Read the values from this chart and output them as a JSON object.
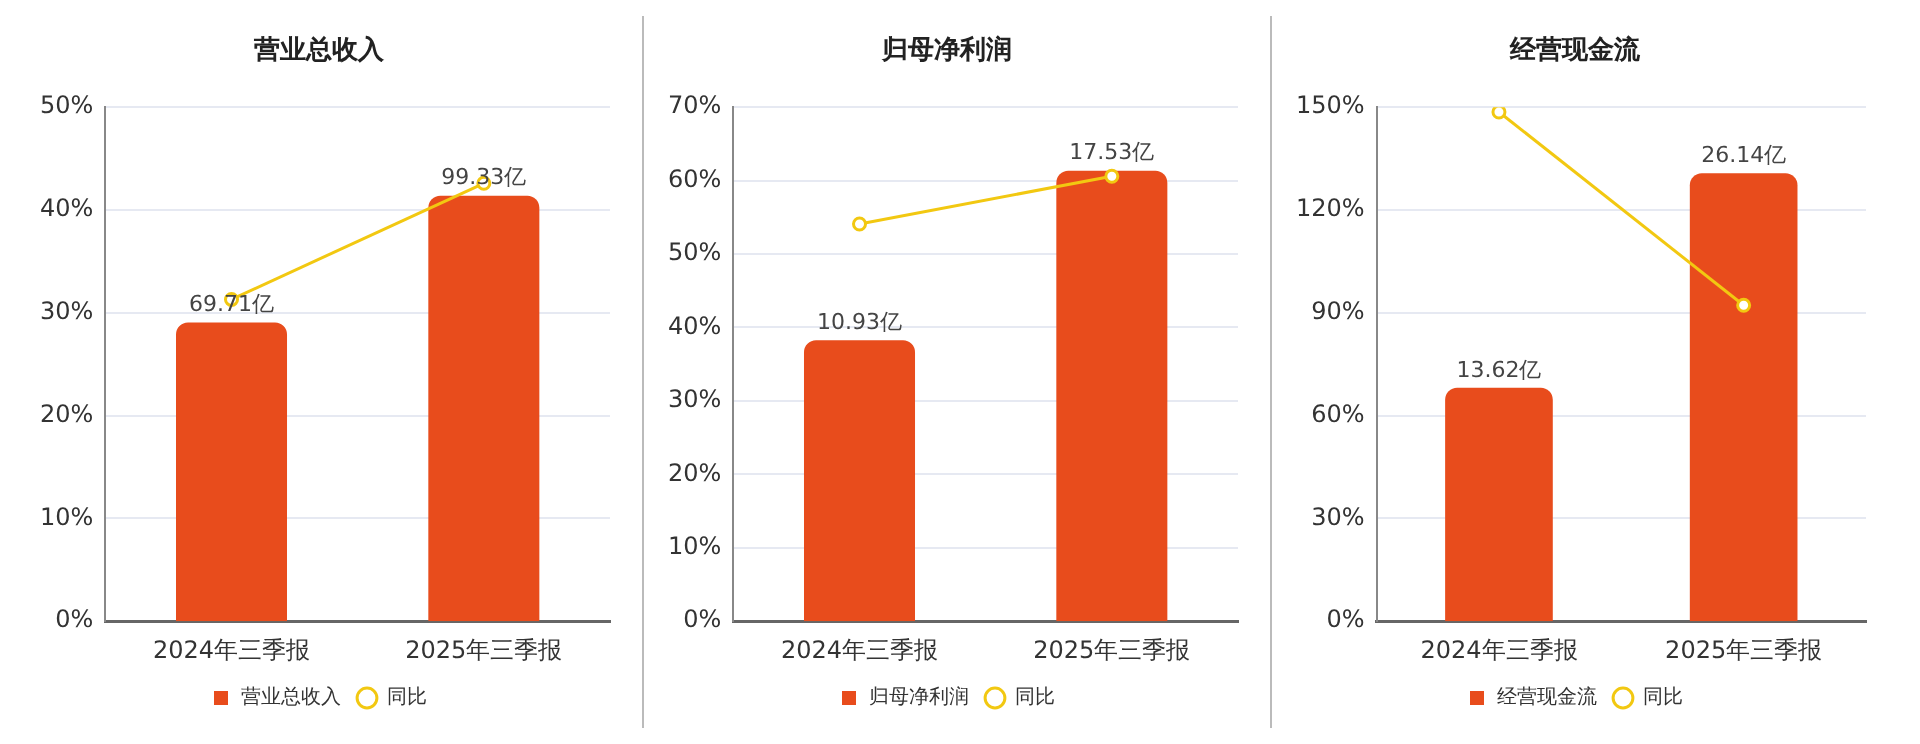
{
  "chart_data": [
    {
      "type": "bar",
      "title": "营业总收入",
      "categories": [
        "2024年三季报",
        "2025年三季报"
      ],
      "series": [
        {
          "name": "营业总收入",
          "color": "#e84c1c",
          "axis": "y2",
          "values": [
            69.71,
            99.33
          ],
          "value_labels": [
            "69.71亿",
            "99.33亿"
          ]
        },
        {
          "name": "同比",
          "type": "line",
          "color": "#f2c811",
          "values": [
            31.3,
            42.6
          ]
        }
      ],
      "ylim": [
        0,
        50
      ],
      "yticks": [
        {
          "value": 0,
          "label": "0%"
        },
        {
          "value": 10,
          "label": "10%"
        },
        {
          "value": 20,
          "label": "20%"
        },
        {
          "value": 30,
          "label": "30%"
        },
        {
          "value": 40,
          "label": "40%"
        },
        {
          "value": 50,
          "label": "50%"
        }
      ],
      "grid": "y",
      "legend": "bottom",
      "marker": "circle"
    },
    {
      "type": "bar",
      "title": "归母净利润",
      "categories": [
        "2024年三季报",
        "2025年三季报"
      ],
      "series": [
        {
          "name": "归母净利润",
          "color": "#e84c1c",
          "axis": "y2",
          "values": [
            10.93,
            17.53
          ],
          "value_labels": [
            "10.93亿",
            "17.53亿"
          ]
        },
        {
          "name": "同比",
          "type": "line",
          "color": "#f2c811",
          "values": [
            54.1,
            60.6
          ]
        }
      ],
      "ylim": [
        0,
        70
      ],
      "yticks": [
        {
          "value": 0,
          "label": "0%"
        },
        {
          "value": 10,
          "label": "10%"
        },
        {
          "value": 20,
          "label": "20%"
        },
        {
          "value": 30,
          "label": "30%"
        },
        {
          "value": 40,
          "label": "40%"
        },
        {
          "value": 50,
          "label": "50%"
        },
        {
          "value": 60,
          "label": "60%"
        },
        {
          "value": 70,
          "label": "70%"
        }
      ],
      "grid": "y",
      "legend": "bottom",
      "marker": "circle"
    },
    {
      "type": "bar",
      "title": "经营现金流",
      "categories": [
        "2024年三季报",
        "2025年三季报"
      ],
      "series": [
        {
          "name": "经营现金流",
          "color": "#e84c1c",
          "axis": "y2",
          "values": [
            13.62,
            26.14
          ],
          "value_labels": [
            "13.62亿",
            "26.14亿"
          ]
        },
        {
          "name": "同比",
          "type": "line",
          "color": "#f2c811",
          "values": [
            148.6,
            92.2
          ]
        }
      ],
      "ylim": [
        0,
        150
      ],
      "yticks": [
        {
          "value": 0,
          "label": "0%"
        },
        {
          "value": 30,
          "label": "30%"
        },
        {
          "value": 60,
          "label": "60%"
        },
        {
          "value": 90,
          "label": "90%"
        },
        {
          "value": 120,
          "label": "120%"
        },
        {
          "value": 150,
          "label": "150%"
        }
      ],
      "grid": "y",
      "legend": "bottom",
      "marker": "circle"
    }
  ]
}
